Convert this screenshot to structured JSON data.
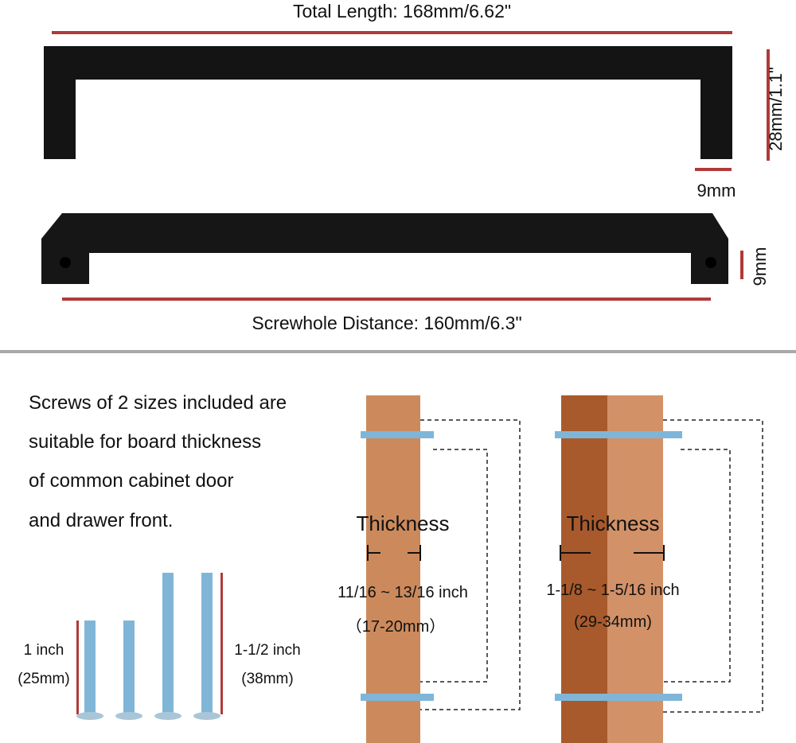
{
  "dimensions": {
    "total_length": "Total Length: 168mm/6.62\"",
    "height": "28mm/1.1\"",
    "bar_width": "9mm",
    "bar_depth": "9mm",
    "screwhole_distance": "Screwhole Distance: 160mm/6.3\""
  },
  "description": {
    "lines": [
      "Screws of 2 sizes included are",
      "suitable for board thickness",
      "of common cabinet door",
      "and drawer front."
    ]
  },
  "screws": {
    "short_inch": "1 inch",
    "short_mm": "(25mm)",
    "long_inch": "1-1/2 inch",
    "long_mm": "(38mm)"
  },
  "boards": [
    {
      "label": "Thickness",
      "range_inch": "11/16 ~ 13/16 inch",
      "range_mm": "（17-20mm）"
    },
    {
      "label": "Thickness",
      "range_inch": "1-1/8 ~ 1-5/16 inch",
      "range_mm": "(29-34mm)"
    }
  ],
  "colors": {
    "accent_line": "#b03a3a",
    "handle": "#141414",
    "wood_light": "#d39168",
    "wood_dark": "#a85a2c",
    "screw": "#7fb6d8",
    "divider": "#a8a8a8"
  }
}
